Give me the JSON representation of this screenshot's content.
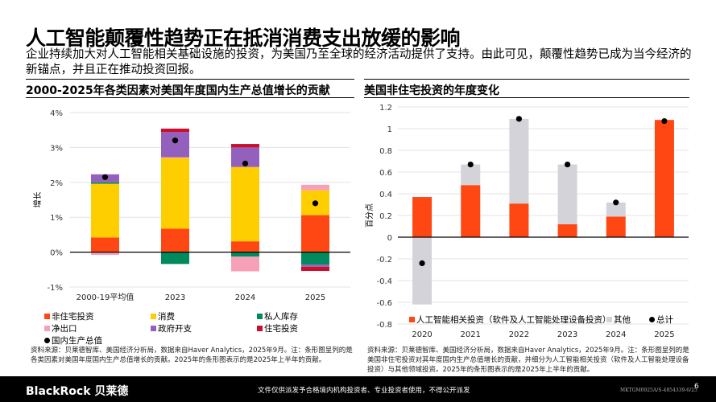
{
  "title": "人工智能颠覆性趋势正在抵消消费支出放缓的影响",
  "subtitle": "企业持续加大对人工智能相关基础设施的投资，为美国乃至全球的经济活动提供了支持。由此可见，颠覆性趋势已成为当今经济的新锚点，并且正在推动投资回报。",
  "chart_data": [
    {
      "type": "bar",
      "stacked": true,
      "title": "2000-2025年各类因素对美国年度国内生产总值增长的贡献",
      "ylabel": "增长",
      "ylim": [
        -1,
        4
      ],
      "yticks": [
        "-1%",
        "0%",
        "1%",
        "2%",
        "3%",
        "4%"
      ],
      "yticks_values": [
        -1,
        0,
        1,
        2,
        3,
        4
      ],
      "categories": [
        "2000-19平均值",
        "2023",
        "2024",
        "2025"
      ],
      "series": [
        {
          "name": "非住宅投资",
          "color": "#ff4713",
          "values": [
            0.42,
            0.67,
            0.31,
            1.06
          ]
        },
        {
          "name": "消费",
          "color": "#ffce00",
          "values": [
            1.54,
            2.03,
            2.13,
            0.71
          ]
        },
        {
          "name": "私人库存",
          "color": "#008a5e",
          "values": [
            0.04,
            -0.34,
            -0.13,
            -0.36
          ]
        },
        {
          "name": "净出口",
          "color": "#f7a1b8",
          "values": [
            -0.08,
            0.02,
            -0.42,
            0.16
          ]
        },
        {
          "name": "政府开支",
          "color": "#9361bd",
          "values": [
            0.23,
            0.72,
            0.56,
            -0.06
          ]
        },
        {
          "name": "住宅投资",
          "color": "#c8102e",
          "values": [
            0,
            0.1,
            0.1,
            -0.12
          ]
        }
      ],
      "points": {
        "name": "国内生产总值",
        "color": "#000000",
        "values": [
          2.15,
          3.2,
          2.54,
          1.4
        ]
      },
      "grid": true,
      "legend": "bottom",
      "source": "资料来源：贝莱德智库、美国经济分析局，数据来自Haver Analytics，2025年9月。注：条形图呈列的是各类因素对美国年度国内生产总值增长的贡献。2025年的条形图表示的是2025年上半年的贡献。"
    },
    {
      "type": "bar",
      "stacked": true,
      "title": "美国非住宅投资的年度变化",
      "ylabel": "百分点",
      "ylim": [
        -0.8,
        1.2
      ],
      "yticks": [
        "-0.8",
        "-0.6",
        "-0.4",
        "-0.2",
        "0",
        "0.2",
        "0.4",
        "0.6",
        "0.8",
        "1",
        "1.2"
      ],
      "yticks_values": [
        -0.8,
        -0.6,
        -0.4,
        -0.2,
        0,
        0.2,
        0.4,
        0.6,
        0.8,
        1,
        1.2
      ],
      "categories": [
        "2020",
        "2021",
        "2022",
        "2023",
        "2024",
        "2025"
      ],
      "series": [
        {
          "name": "人工智能相关投资（软件及人工智能处理设备投资）",
          "color": "#ff4713",
          "values": [
            0.37,
            0.48,
            0.31,
            0.12,
            0.19,
            1.08
          ]
        },
        {
          "name": "其他",
          "color": "#d5d3da",
          "values": [
            -0.62,
            0.19,
            0.78,
            0.55,
            0.13,
            0
          ]
        }
      ],
      "points": {
        "name": "总计",
        "color": "#000000",
        "values": [
          -0.24,
          0.67,
          1.09,
          0.67,
          0.32,
          1.07
        ]
      },
      "grid": true,
      "legend": "bottom-inside",
      "source": "资料来源：贝莱德智库、美国经济分析局，数据来自Haver Analytics，2025年9月。注：条形图呈列的是美国非住宅投资对其年度国内生产总值增长的贡献，并细分为人工智能相关投资（软件及人工智能处理设备投资）与其他领域投资。2025年的条形图表示的是2025年上半年的贡献。"
    }
  ],
  "footer": {
    "brand": "BlackRock 贝莱德",
    "disclaimer": "文件仅供派发予合格境内机构投资者、专业投资者使用，不得公开派发",
    "code": "MKTGM0925A/S-4854339-6/25",
    "page": "6"
  }
}
